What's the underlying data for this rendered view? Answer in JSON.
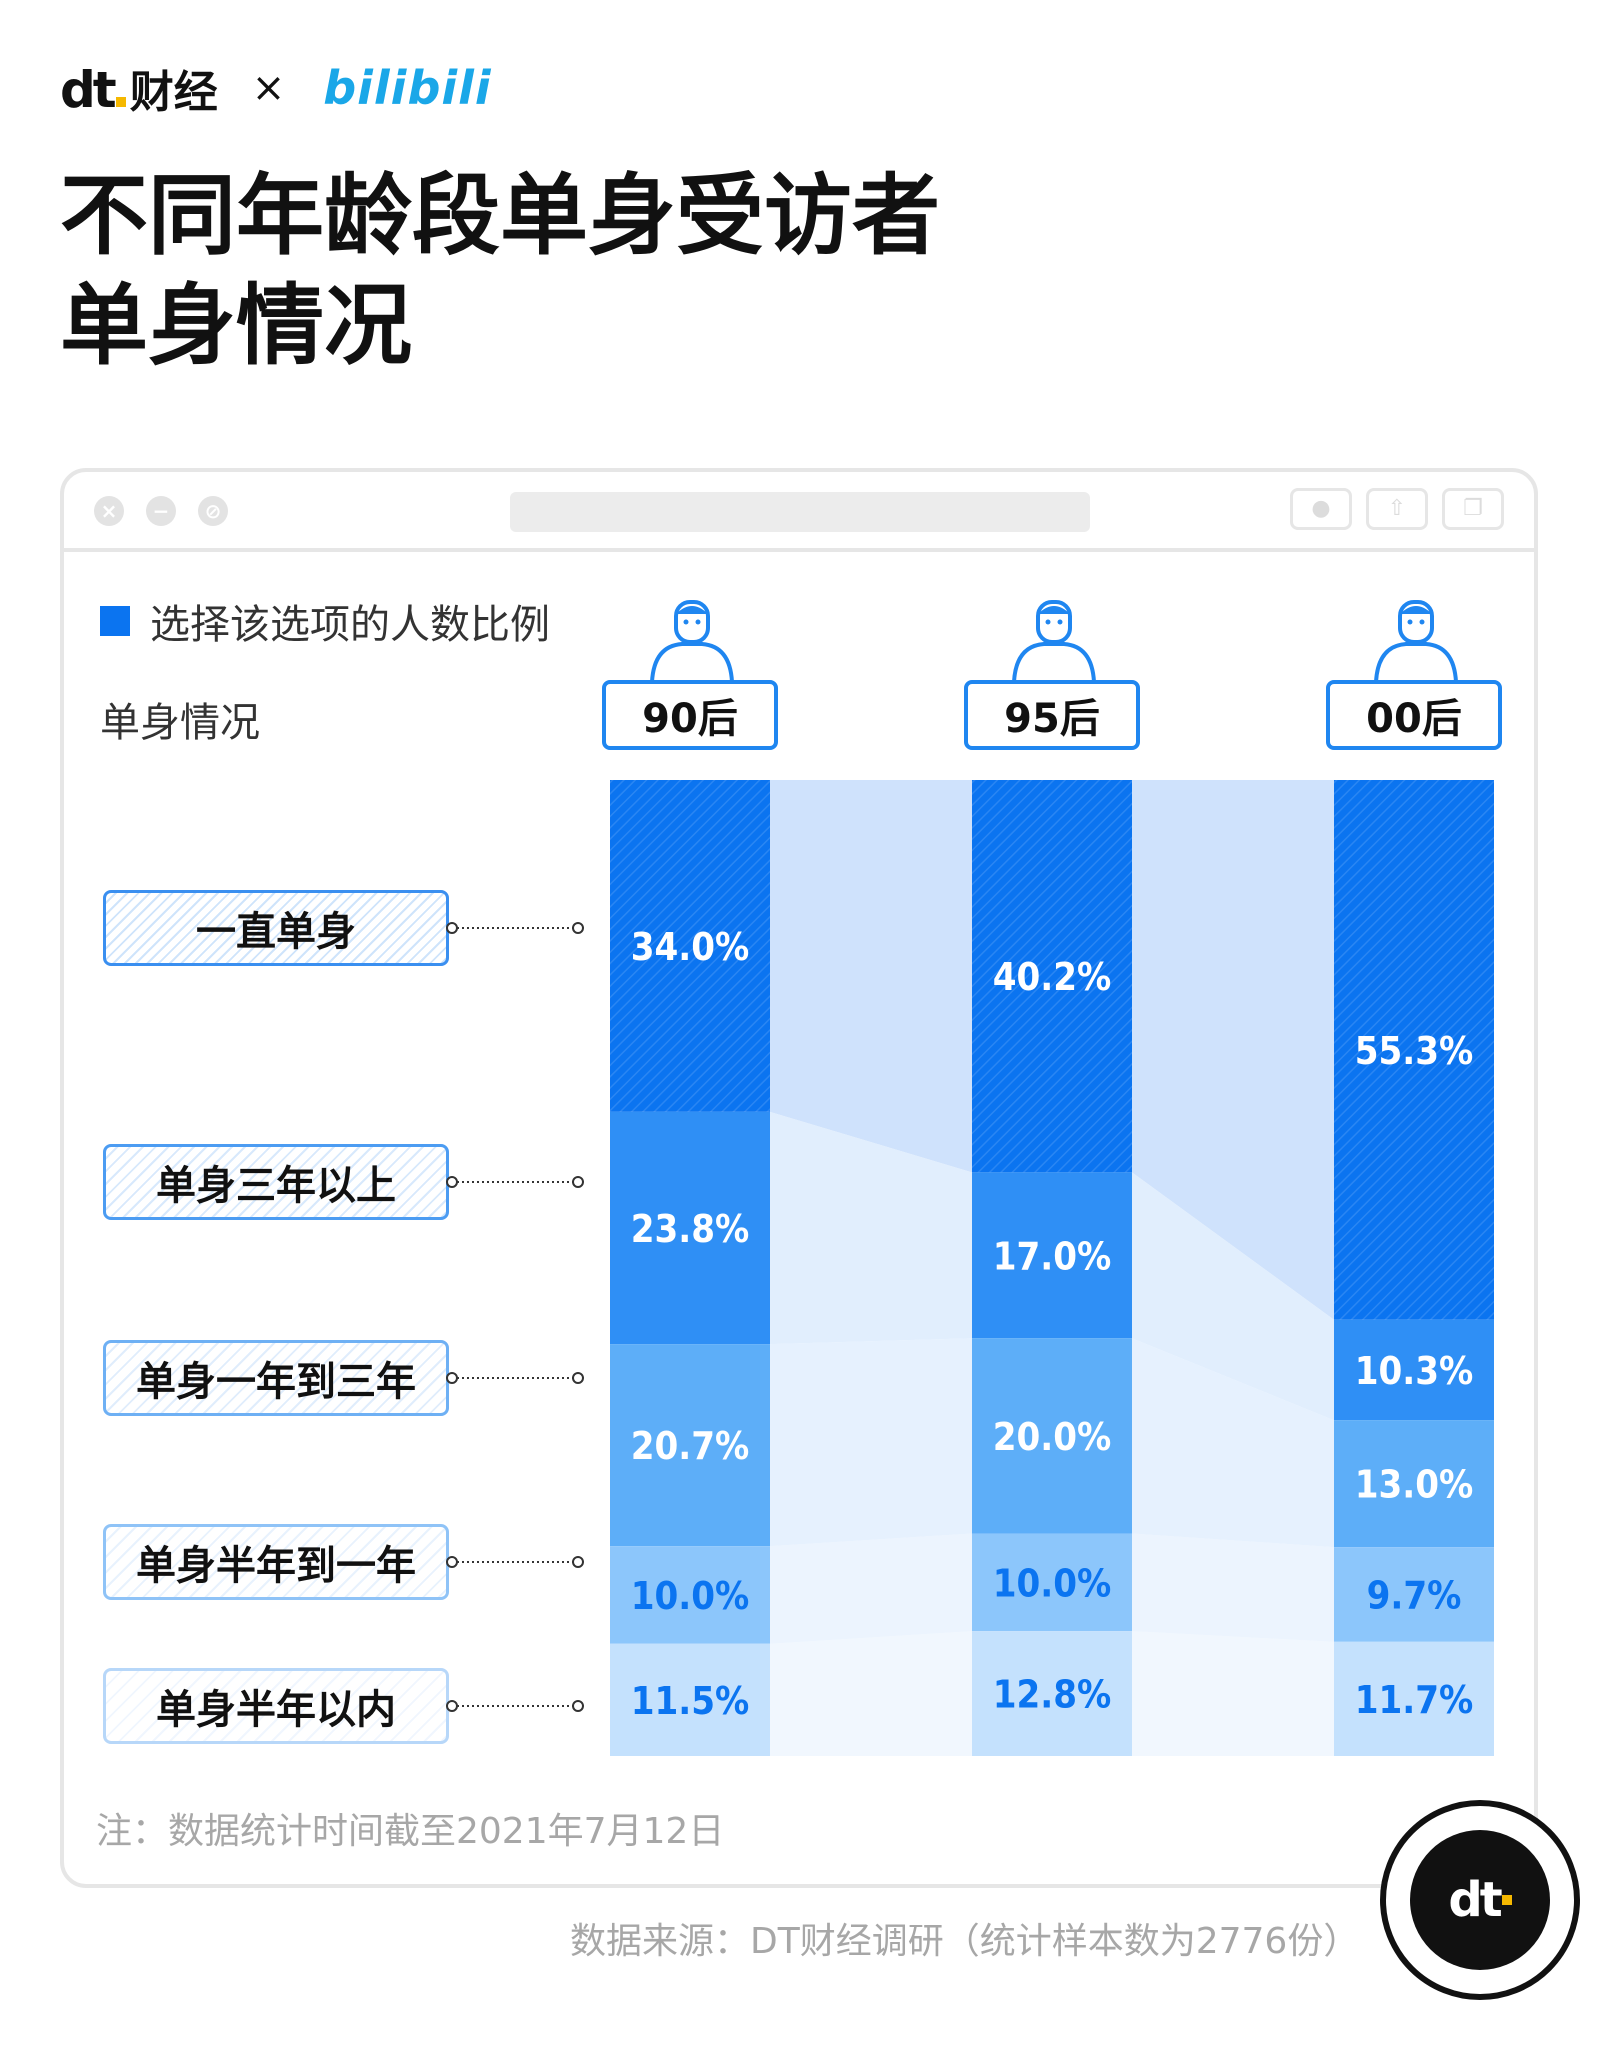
{
  "header": {
    "brand_left": "dt",
    "brand_left_cn": "财经",
    "times": "×",
    "brand_right": "bilibili",
    "title_line1": "不同年龄段单身受访者",
    "title_line2": "单身情况"
  },
  "legend": {
    "label": "选择该选项的人数比例",
    "color": "#0b74f0"
  },
  "row_header": "单身情况",
  "footnote": "注：数据统计时间截至2021年7月12日",
  "source": "数据来源：DT财经调研（统计样本数为2776份）",
  "colors": {
    "seg_dark": "#0b74f0",
    "seg_2": "#2f8ff5",
    "seg_3": "#5daef8",
    "seg_4": "#8cc6fb",
    "seg_5": "#c4e1fd",
    "connector": "#dcebfd"
  },
  "chart_data": {
    "type": "bar",
    "stacked": true,
    "unit": "%",
    "categories": [
      "90后",
      "95后",
      "00后"
    ],
    "series": [
      {
        "name": "一直单身",
        "values": [
          34.0,
          40.2,
          55.3
        ],
        "labels": [
          "34.0%",
          "40.2%",
          "55.3%"
        ]
      },
      {
        "name": "单身三年以上",
        "values": [
          23.8,
          17.0,
          10.3
        ],
        "labels": [
          "23.8%",
          "17.0%",
          "10.3%"
        ]
      },
      {
        "name": "单身一年到三年",
        "values": [
          20.7,
          20.0,
          13.0
        ],
        "labels": [
          "20.7%",
          "20.0%",
          "13.0%"
        ]
      },
      {
        "name": "单身半年到一年",
        "values": [
          10.0,
          10.0,
          9.7
        ],
        "labels": [
          "10.0%",
          "10.0%",
          "9.7%"
        ]
      },
      {
        "name": "单身半年以内",
        "values": [
          11.5,
          12.8,
          11.7
        ],
        "labels": [
          "11.5%",
          "12.8%",
          "11.7%"
        ]
      }
    ]
  }
}
